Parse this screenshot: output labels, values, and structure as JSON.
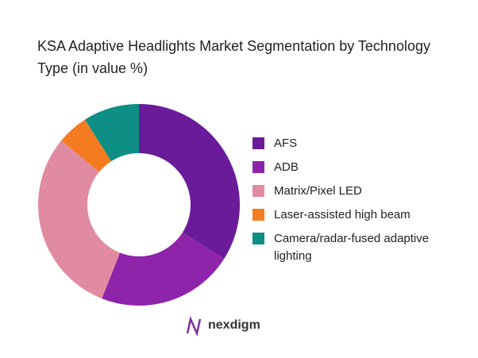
{
  "chart_data": {
    "type": "donut",
    "title": "KSA Adaptive Headlights Market Segmentation by Technology Type (in value %)",
    "categories": [
      "AFS",
      "ADB",
      "Matrix/Pixel LED",
      "Laser-assisted high beam",
      "Camera/radar-fused adaptive lighting"
    ],
    "values": [
      34,
      22,
      30,
      5,
      9
    ],
    "colors": [
      "#6a1b9a",
      "#8e24aa",
      "#e08ba1",
      "#f47b20",
      "#0e8f86"
    ],
    "legend": "right"
  },
  "brand": "nexdigm"
}
